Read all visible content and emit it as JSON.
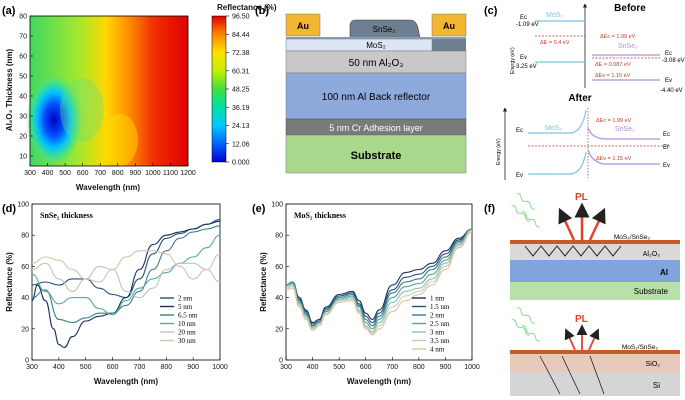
{
  "panel_labels": {
    "a": "(a)",
    "b": "(b)",
    "c": "(c)",
    "d": "(d)",
    "e": "(e)",
    "f": "(f)"
  },
  "colorbar": {
    "title": "Reflectance (%)",
    "ticks": [
      "96.50",
      "84.44",
      "72.38",
      "60.31",
      "48.25",
      "36.19",
      "24.13",
      "12.06",
      "0.000"
    ]
  },
  "colors": {
    "d": [
      "#1f4e79",
      "#162f5e",
      "#3b7f86",
      "#58a9a0",
      "#b8c7b8",
      "#d7c2a9"
    ],
    "e": [
      "#1a2f5a",
      "#2a5080",
      "#3a7a8c",
      "#52a39a",
      "#88c2b0",
      "#c8cdb4",
      "#ddc3a0"
    ]
  },
  "stack": {
    "au_left": "Au",
    "au_right": "Au",
    "snse2": "SnSe₂",
    "mos2": "MoS₂",
    "al2o3": "50 nm Al₂O₃",
    "al": "100 nm Al Back reflector",
    "cr": "5 nm Cr Adhesion layer",
    "substrate": "Substrate"
  },
  "band": {
    "before_title": "Before",
    "after_title": "After",
    "mos2": "MoS₂",
    "snse2": "SnSe₂",
    "ec_mos2": "-1.09 eV",
    "ev_mos2": "-3.25 eV",
    "ec_snse2": "-3.08 eV",
    "ev_snse2": "-4.40 eV",
    "dE": "ΔE = 0.4 eV",
    "dEc_before": "ΔEc = 1.99 eV",
    "dEf": "ΔE = 0.087 eV",
    "dEv_before": "ΔEv = 1.15 eV",
    "dEc_after": "ΔEc = 1.99 eV",
    "dEv_after": "ΔEv = 1.15 eV",
    "ec": "Ec",
    "ev": "Ev",
    "ef": "Ef",
    "energy_axis": "Energy (eV)"
  },
  "schematic": {
    "pl": "PL",
    "top_layers": [
      "MoS₂/SnSe₂",
      "Al₂O₃",
      "Al",
      "Substrate"
    ],
    "bottom_layers": [
      "MoS₂/SnSe₂",
      "SiO₂",
      "Si"
    ]
  },
  "chart_data": [
    {
      "id": "a",
      "type": "heatmap",
      "xlabel": "Wavelength (nm)",
      "ylabel": "Al₂O₃ Thickness (nm)",
      "xlim": [
        300,
        1200
      ],
      "ylim": [
        5,
        80
      ],
      "xticks": [
        300,
        400,
        500,
        600,
        700,
        800,
        900,
        1000,
        1100,
        1200
      ],
      "yticks": [
        10,
        20,
        30,
        40,
        50,
        60,
        70,
        80
      ],
      "zrange": [
        0,
        96.5
      ]
    },
    {
      "id": "d",
      "type": "line",
      "title": "SnSe₂ thickness",
      "xlabel": "Wavelength (nm)",
      "ylabel": "Reflectance (%)",
      "xlim": [
        300,
        1000
      ],
      "ylim": [
        0,
        100
      ],
      "xticks": [
        300,
        400,
        500,
        600,
        700,
        800,
        900,
        1000
      ],
      "yticks": [
        0,
        20,
        40,
        60,
        80,
        100
      ],
      "series": [
        {
          "name": "2 nm",
          "x": [
            300,
            350,
            400,
            450,
            500,
            550,
            600,
            650,
            700,
            750,
            800,
            850,
            900,
            950,
            1000
          ],
          "y": [
            48,
            50,
            48,
            52,
            52,
            46,
            42,
            40,
            52,
            68,
            78,
            81,
            84,
            87,
            90
          ]
        },
        {
          "name": "5 nm",
          "x": [
            300,
            320,
            350,
            380,
            400,
            420,
            450,
            500,
            550,
            600,
            650,
            700,
            750,
            800,
            850,
            900,
            950,
            1000
          ],
          "y": [
            38,
            48,
            38,
            20,
            10,
            8,
            15,
            25,
            28,
            30,
            40,
            58,
            74,
            80,
            82,
            84,
            87,
            89
          ]
        },
        {
          "name": "6.5 nm",
          "x": [
            300,
            350,
            400,
            450,
            500,
            550,
            600,
            650,
            700,
            750,
            800,
            850,
            900,
            950,
            1000
          ],
          "y": [
            40,
            45,
            26,
            24,
            27,
            30,
            30,
            35,
            44,
            58,
            70,
            78,
            82,
            84,
            86
          ]
        },
        {
          "name": "10 nm",
          "x": [
            300,
            350,
            400,
            450,
            500,
            550,
            600,
            650,
            700,
            750,
            800,
            850,
            900,
            950,
            1000
          ],
          "y": [
            55,
            44,
            36,
            40,
            40,
            33,
            29,
            38,
            46,
            52,
            56,
            62,
            66,
            72,
            80
          ]
        },
        {
          "name": "20 nm",
          "x": [
            300,
            350,
            400,
            450,
            500,
            550,
            600,
            650,
            700,
            750,
            800,
            850,
            900,
            950,
            1000
          ],
          "y": [
            58,
            62,
            52,
            44,
            52,
            60,
            58,
            44,
            40,
            46,
            58,
            62,
            62,
            58,
            50
          ]
        },
        {
          "name": "30 nm",
          "x": [
            300,
            350,
            400,
            450,
            500,
            550,
            600,
            650,
            700,
            750,
            800,
            850,
            900,
            950,
            1000
          ],
          "y": [
            62,
            66,
            64,
            58,
            52,
            50,
            58,
            66,
            70,
            70,
            68,
            60,
            52,
            58,
            68
          ]
        }
      ]
    },
    {
      "id": "e",
      "type": "line",
      "title": "MoS₂ thickness",
      "xlabel": "Wavelength (nm)",
      "ylabel": "Reflectance (%)",
      "xlim": [
        300,
        1000
      ],
      "ylim": [
        0,
        100
      ],
      "xticks": [
        300,
        400,
        500,
        600,
        700,
        800,
        900,
        1000
      ],
      "yticks": [
        0,
        20,
        40,
        60,
        80,
        100
      ],
      "series": [
        {
          "name": "1 nm",
          "x": [
            300,
            325,
            350,
            375,
            400,
            425,
            450,
            500,
            550,
            575,
            600,
            625,
            650,
            700,
            750,
            800,
            850,
            900,
            950,
            1000
          ],
          "y": [
            48,
            50,
            40,
            32,
            24,
            26,
            34,
            42,
            44,
            38,
            30,
            26,
            32,
            48,
            56,
            58,
            62,
            70,
            78,
            84
          ]
        },
        {
          "name": "1.5 nm",
          "x": [
            300,
            325,
            350,
            375,
            400,
            425,
            450,
            500,
            550,
            575,
            600,
            625,
            650,
            700,
            750,
            800,
            850,
            900,
            950,
            1000
          ],
          "y": [
            48,
            50,
            39,
            31,
            23,
            25,
            33,
            41,
            43,
            36,
            28,
            24,
            30,
            45,
            53,
            55,
            60,
            68,
            77,
            84
          ]
        },
        {
          "name": "2 nm",
          "x": [
            300,
            325,
            350,
            375,
            400,
            425,
            450,
            500,
            550,
            575,
            600,
            625,
            650,
            700,
            750,
            800,
            850,
            900,
            950,
            1000
          ],
          "y": [
            48,
            50,
            38,
            30,
            22,
            24,
            32,
            40,
            42,
            35,
            26,
            22,
            28,
            43,
            50,
            52,
            58,
            66,
            76,
            84
          ]
        },
        {
          "name": "2.5 nm",
          "x": [
            300,
            325,
            350,
            375,
            400,
            425,
            450,
            500,
            550,
            575,
            600,
            625,
            650,
            700,
            750,
            800,
            850,
            900,
            950,
            1000
          ],
          "y": [
            48,
            49,
            37,
            29,
            21,
            24,
            31,
            39,
            41,
            34,
            24,
            20,
            26,
            40,
            47,
            49,
            55,
            64,
            75,
            84
          ]
        },
        {
          "name": "3 nm",
          "x": [
            300,
            325,
            350,
            375,
            400,
            425,
            450,
            500,
            550,
            575,
            600,
            625,
            650,
            700,
            750,
            800,
            850,
            900,
            950,
            1000
          ],
          "y": [
            47,
            48,
            36,
            28,
            20,
            23,
            30,
            38,
            40,
            32,
            22,
            18,
            24,
            37,
            44,
            46,
            52,
            62,
            74,
            83
          ]
        },
        {
          "name": "3.5 nm",
          "x": [
            300,
            325,
            350,
            375,
            400,
            425,
            450,
            500,
            550,
            575,
            600,
            625,
            650,
            700,
            750,
            800,
            850,
            900,
            950,
            1000
          ],
          "y": [
            46,
            47,
            35,
            27,
            20,
            23,
            30,
            38,
            39,
            31,
            21,
            17,
            22,
            34,
            41,
            44,
            50,
            60,
            73,
            83
          ]
        },
        {
          "name": "4 nm",
          "x": [
            300,
            325,
            350,
            375,
            400,
            425,
            450,
            500,
            550,
            575,
            600,
            625,
            650,
            700,
            750,
            800,
            850,
            900,
            950,
            1000
          ],
          "y": [
            45,
            46,
            34,
            26,
            19,
            22,
            29,
            37,
            38,
            30,
            20,
            16,
            20,
            31,
            38,
            42,
            48,
            58,
            72,
            82
          ]
        }
      ]
    }
  ]
}
